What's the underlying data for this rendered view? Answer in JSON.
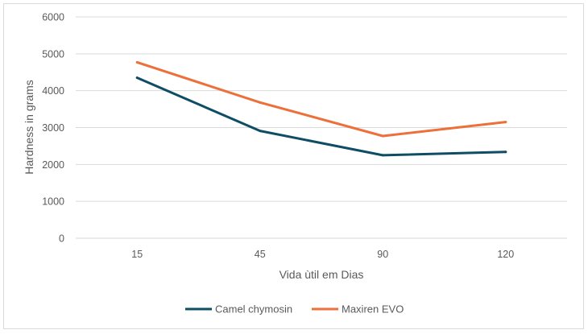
{
  "chart_data": {
    "type": "line",
    "categories": [
      "15",
      "45",
      "90",
      "120"
    ],
    "series": [
      {
        "name": "Camel chymosin",
        "color": "#0e4d64",
        "values": [
          4350,
          2910,
          2250,
          2340
        ]
      },
      {
        "name": "Maxiren EVO",
        "color": "#ed6f3a",
        "values": [
          4770,
          3680,
          2770,
          3150
        ]
      }
    ],
    "xlabel": "Vida ùtil em Dias",
    "ylabel": "Hardness in grams",
    "ylim": [
      0,
      6000
    ],
    "yticks": [
      0,
      1000,
      2000,
      3000,
      4000,
      5000,
      6000
    ],
    "grid": true,
    "legend_position": "bottom"
  }
}
